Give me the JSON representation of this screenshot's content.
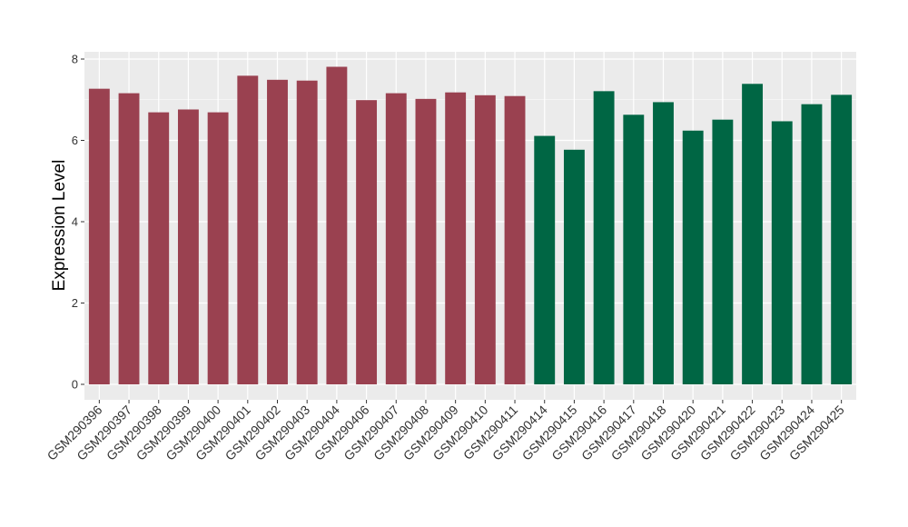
{
  "chart_data": {
    "type": "bar",
    "title": "",
    "xlabel": "",
    "ylabel": "Expression Level",
    "ylim": [
      0,
      8.2
    ],
    "yticks": [
      0,
      2,
      4,
      6,
      8
    ],
    "grid": true,
    "legend": "none",
    "colors": {
      "panel": "#EBEBEB",
      "grid": "#FFFFFF",
      "group1": "#9A4150",
      "group2": "#006644"
    },
    "categories": [
      "GSM290396",
      "GSM290397",
      "GSM290398",
      "GSM290399",
      "GSM290400",
      "GSM290401",
      "GSM290402",
      "GSM290403",
      "GSM290404",
      "GSM290406",
      "GSM290407",
      "GSM290408",
      "GSM290409",
      "GSM290410",
      "GSM290411",
      "GSM290414",
      "GSM290415",
      "GSM290416",
      "GSM290417",
      "GSM290418",
      "GSM290420",
      "GSM290421",
      "GSM290422",
      "GSM290423",
      "GSM290424",
      "GSM290425"
    ],
    "values": [
      7.27,
      7.16,
      6.69,
      6.76,
      6.69,
      7.59,
      7.49,
      7.47,
      7.81,
      6.99,
      7.16,
      7.02,
      7.18,
      7.11,
      7.09,
      6.11,
      5.77,
      7.21,
      6.63,
      6.94,
      6.24,
      6.51,
      7.39,
      6.47,
      6.89,
      7.12
    ],
    "groups": [
      1,
      1,
      1,
      1,
      1,
      1,
      1,
      1,
      1,
      1,
      1,
      1,
      1,
      1,
      1,
      2,
      2,
      2,
      2,
      2,
      2,
      2,
      2,
      2,
      2,
      2
    ]
  }
}
